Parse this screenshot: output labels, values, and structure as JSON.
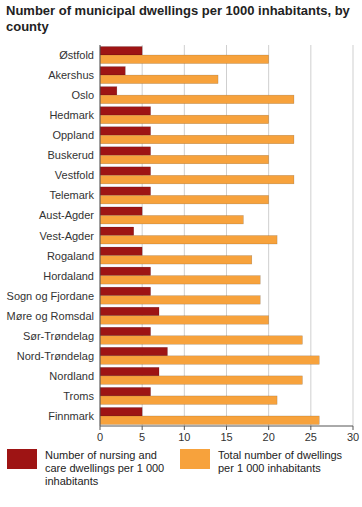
{
  "chart_data": {
    "type": "bar",
    "orientation": "horizontal",
    "title": "Number of municipal dwellings per 1000 inhabitants, by county",
    "categories": [
      "Østfold",
      "Akershus",
      "Oslo",
      "Hedmark",
      "Oppland",
      "Buskerud",
      "Vestfold",
      "Telemark",
      "Aust-Agder",
      "Vest-Agder",
      "Rogaland",
      "Hordaland",
      "Sogn og Fjordane",
      "Møre og Romsdal",
      "Sør-Trøndelag",
      "Nord-Trøndelag",
      "Nordland",
      "Troms",
      "Finnmark"
    ],
    "series": [
      {
        "name": "Number of nursing and care dwellings per 1 000 inhabitants",
        "color": "#9e1414",
        "values": [
          5,
          3,
          2,
          6,
          6,
          6,
          6,
          6,
          5,
          4,
          5,
          6,
          6,
          7,
          6,
          8,
          7,
          6,
          5
        ]
      },
      {
        "name": "Total number of  dwellings per 1 000 inhabitants",
        "color": "#f7a23c",
        "values": [
          20,
          14,
          23,
          20,
          23,
          20,
          23,
          20,
          17,
          21,
          18,
          19,
          19,
          20,
          24,
          26,
          24,
          21,
          26
        ]
      }
    ],
    "xlim": [
      0,
      30
    ],
    "xticks": [
      0,
      5,
      10,
      15,
      20,
      25,
      30
    ],
    "grid": true,
    "legend": "bottom"
  }
}
